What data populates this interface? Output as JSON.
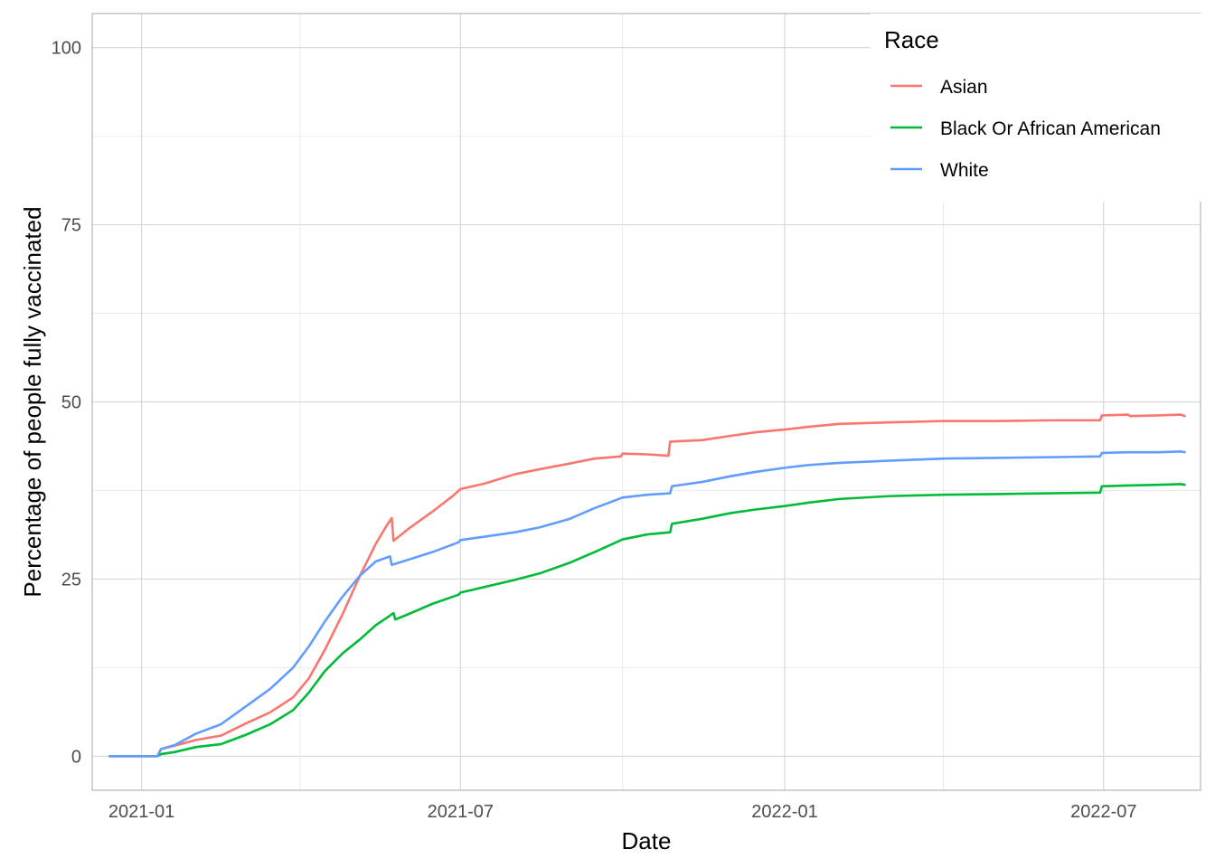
{
  "chart_data": {
    "type": "line",
    "title": "",
    "xlabel": "Date",
    "ylabel": "Percentage of people fully vaccinated",
    "x_type": "date",
    "xlim": [
      "2020-12-04",
      "2022-08-25"
    ],
    "ylim": [
      -4.8,
      104.8
    ],
    "x_ticks": [
      {
        "value": "2021-01-01",
        "label": "2021-01"
      },
      {
        "value": "2021-07-01",
        "label": "2021-07"
      },
      {
        "value": "2022-01-01",
        "label": "2022-01"
      },
      {
        "value": "2022-07-01",
        "label": "2022-07"
      }
    ],
    "x_minor_ticks": [
      "2021-04-01",
      "2021-10-01",
      "2022-04-01"
    ],
    "y_ticks": [
      0,
      25,
      50,
      75,
      100
    ],
    "y_minor_ticks": [
      12.5,
      37.5,
      62.5,
      87.5
    ],
    "grid": true,
    "legend": {
      "title": "Race",
      "position": "top-right"
    },
    "colors": {
      "grid_major": "#d9d9d9",
      "grid_minor": "#ebebeb",
      "panel_border": "#b3b3b3"
    },
    "series": [
      {
        "name": "Asian",
        "color": "#F8766D",
        "points": [
          [
            "2020-12-14",
            0
          ],
          [
            "2021-01-10",
            0
          ],
          [
            "2021-01-12",
            1.0
          ],
          [
            "2021-01-20",
            1.5
          ],
          [
            "2021-02-01",
            2.3
          ],
          [
            "2021-02-15",
            2.9
          ],
          [
            "2021-03-01",
            4.6
          ],
          [
            "2021-03-15",
            6.2
          ],
          [
            "2021-03-28",
            8.3
          ],
          [
            "2021-04-06",
            11.0
          ],
          [
            "2021-04-15",
            15.0
          ],
          [
            "2021-04-25",
            20.0
          ],
          [
            "2021-05-05",
            25.5
          ],
          [
            "2021-05-14",
            30.0
          ],
          [
            "2021-05-20",
            32.5
          ],
          [
            "2021-05-23",
            33.6
          ],
          [
            "2021-05-24",
            30.4
          ],
          [
            "2021-06-01",
            32.0
          ],
          [
            "2021-06-15",
            34.5
          ],
          [
            "2021-06-27",
            36.8
          ],
          [
            "2021-07-01",
            37.7
          ],
          [
            "2021-07-15",
            38.5
          ],
          [
            "2021-08-01",
            39.8
          ],
          [
            "2021-08-15",
            40.5
          ],
          [
            "2021-09-01",
            41.3
          ],
          [
            "2021-09-15",
            42.0
          ],
          [
            "2021-09-30",
            42.3
          ],
          [
            "2021-10-01",
            42.7
          ],
          [
            "2021-10-15",
            42.6
          ],
          [
            "2021-10-27",
            42.4
          ],
          [
            "2021-10-28",
            44.4
          ],
          [
            "2021-11-15",
            44.6
          ],
          [
            "2021-12-01",
            45.2
          ],
          [
            "2021-12-15",
            45.7
          ],
          [
            "2022-01-01",
            46.1
          ],
          [
            "2022-01-15",
            46.5
          ],
          [
            "2022-02-01",
            46.9
          ],
          [
            "2022-03-01",
            47.1
          ],
          [
            "2022-04-01",
            47.3
          ],
          [
            "2022-05-01",
            47.3
          ],
          [
            "2022-06-01",
            47.4
          ],
          [
            "2022-06-29",
            47.4
          ],
          [
            "2022-06-30",
            48.1
          ],
          [
            "2022-07-15",
            48.2
          ],
          [
            "2022-07-16",
            48.0
          ],
          [
            "2022-08-01",
            48.1
          ],
          [
            "2022-08-14",
            48.2
          ],
          [
            "2022-08-16",
            48.0
          ]
        ]
      },
      {
        "name": "Black Or African American",
        "color": "#00BA38",
        "points": [
          [
            "2020-12-14",
            0
          ],
          [
            "2021-01-10",
            0
          ],
          [
            "2021-01-12",
            0.3
          ],
          [
            "2021-01-20",
            0.6
          ],
          [
            "2021-02-01",
            1.3
          ],
          [
            "2021-02-15",
            1.7
          ],
          [
            "2021-03-01",
            3.0
          ],
          [
            "2021-03-15",
            4.5
          ],
          [
            "2021-03-28",
            6.5
          ],
          [
            "2021-04-06",
            9.0
          ],
          [
            "2021-04-15",
            12.0
          ],
          [
            "2021-04-25",
            14.5
          ],
          [
            "2021-05-05",
            16.5
          ],
          [
            "2021-05-14",
            18.5
          ],
          [
            "2021-05-20",
            19.5
          ],
          [
            "2021-05-24",
            20.2
          ],
          [
            "2021-05-25",
            19.3
          ],
          [
            "2021-06-01",
            20.0
          ],
          [
            "2021-06-15",
            21.5
          ],
          [
            "2021-06-30",
            22.8
          ],
          [
            "2021-07-01",
            23.1
          ],
          [
            "2021-07-15",
            23.9
          ],
          [
            "2021-08-01",
            24.9
          ],
          [
            "2021-08-15",
            25.8
          ],
          [
            "2021-09-01",
            27.3
          ],
          [
            "2021-09-15",
            28.8
          ],
          [
            "2021-10-01",
            30.6
          ],
          [
            "2021-10-15",
            31.3
          ],
          [
            "2021-10-28",
            31.6
          ],
          [
            "2021-10-29",
            32.8
          ],
          [
            "2021-11-15",
            33.5
          ],
          [
            "2021-12-01",
            34.3
          ],
          [
            "2021-12-15",
            34.8
          ],
          [
            "2022-01-01",
            35.3
          ],
          [
            "2022-01-15",
            35.8
          ],
          [
            "2022-02-01",
            36.3
          ],
          [
            "2022-03-01",
            36.7
          ],
          [
            "2022-04-01",
            36.9
          ],
          [
            "2022-05-01",
            37.0
          ],
          [
            "2022-06-01",
            37.1
          ],
          [
            "2022-06-29",
            37.2
          ],
          [
            "2022-06-30",
            38.1
          ],
          [
            "2022-07-15",
            38.2
          ],
          [
            "2022-08-01",
            38.3
          ],
          [
            "2022-08-14",
            38.4
          ],
          [
            "2022-08-16",
            38.3
          ]
        ]
      },
      {
        "name": "White",
        "color": "#619CFF",
        "points": [
          [
            "2020-12-14",
            0
          ],
          [
            "2021-01-10",
            0
          ],
          [
            "2021-01-12",
            1.0
          ],
          [
            "2021-01-20",
            1.6
          ],
          [
            "2021-02-01",
            3.2
          ],
          [
            "2021-02-15",
            4.5
          ],
          [
            "2021-03-01",
            7.0
          ],
          [
            "2021-03-15",
            9.5
          ],
          [
            "2021-03-28",
            12.5
          ],
          [
            "2021-04-06",
            15.5
          ],
          [
            "2021-04-15",
            19.0
          ],
          [
            "2021-04-25",
            22.5
          ],
          [
            "2021-05-05",
            25.5
          ],
          [
            "2021-05-14",
            27.5
          ],
          [
            "2021-05-22",
            28.2
          ],
          [
            "2021-05-23",
            27.0
          ],
          [
            "2021-06-01",
            27.7
          ],
          [
            "2021-06-15",
            28.8
          ],
          [
            "2021-06-30",
            30.2
          ],
          [
            "2021-07-01",
            30.5
          ],
          [
            "2021-07-15",
            31.0
          ],
          [
            "2021-08-01",
            31.6
          ],
          [
            "2021-08-15",
            32.3
          ],
          [
            "2021-09-01",
            33.5
          ],
          [
            "2021-09-15",
            35.0
          ],
          [
            "2021-10-01",
            36.5
          ],
          [
            "2021-10-15",
            36.9
          ],
          [
            "2021-10-28",
            37.1
          ],
          [
            "2021-10-29",
            38.1
          ],
          [
            "2021-11-15",
            38.7
          ],
          [
            "2021-12-01",
            39.5
          ],
          [
            "2021-12-15",
            40.1
          ],
          [
            "2022-01-01",
            40.7
          ],
          [
            "2022-01-15",
            41.1
          ],
          [
            "2022-02-01",
            41.4
          ],
          [
            "2022-03-01",
            41.7
          ],
          [
            "2022-04-01",
            42.0
          ],
          [
            "2022-05-01",
            42.1
          ],
          [
            "2022-06-01",
            42.2
          ],
          [
            "2022-06-29",
            42.3
          ],
          [
            "2022-06-30",
            42.8
          ],
          [
            "2022-07-15",
            42.9
          ],
          [
            "2022-08-01",
            42.9
          ],
          [
            "2022-08-14",
            43.0
          ],
          [
            "2022-08-16",
            42.9
          ]
        ]
      }
    ]
  }
}
